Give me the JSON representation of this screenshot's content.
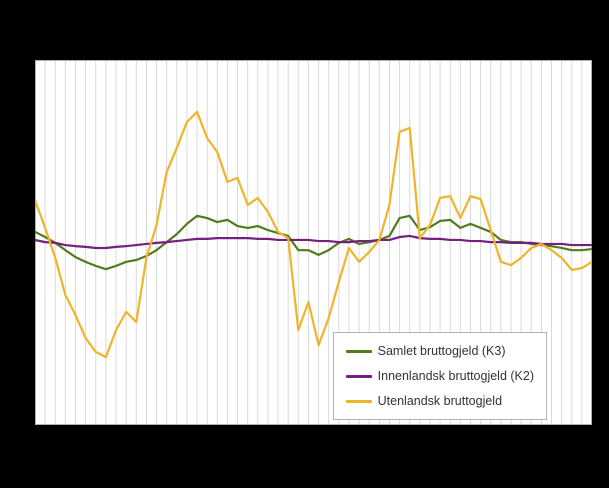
{
  "figure": {
    "background_color": "#000000",
    "plot_background_color": "#ffffff"
  },
  "chart_data": {
    "type": "line",
    "title": "",
    "xlabel": "",
    "ylabel": "",
    "x_axis_labels_visible": false,
    "y_axis_labels_visible": false,
    "grid": "vertical",
    "gridline_color": "#d9d9d9",
    "border_color": "#b0b0b0",
    "legend_position": "bottom-right-inside",
    "ylim": [
      0,
      100
    ],
    "units": "normalized-plot-height-percent (axis labels not visible in image)",
    "x": [
      0,
      1,
      2,
      3,
      4,
      5,
      6,
      7,
      8,
      9,
      10,
      11,
      12,
      13,
      14,
      15,
      16,
      17,
      18,
      19,
      20,
      21,
      22,
      23,
      24,
      25,
      26,
      27,
      28,
      29,
      30,
      31,
      32,
      33,
      34,
      35,
      36,
      37,
      38,
      39,
      40,
      41,
      42,
      43,
      44,
      45,
      46,
      47,
      48,
      49,
      50,
      51,
      52,
      53,
      54,
      55
    ],
    "series": [
      {
        "name": "Samlet bruttogjeld (K3)",
        "color": "#4f7d1e",
        "values": [
          52.9,
          51.5,
          49.9,
          47.9,
          46.0,
          44.7,
          43.6,
          42.7,
          43.6,
          44.7,
          45.2,
          46.3,
          47.9,
          50.1,
          52.3,
          55.1,
          57.3,
          56.7,
          55.6,
          56.2,
          54.5,
          54.0,
          54.5,
          53.4,
          52.6,
          51.8,
          47.9,
          47.9,
          46.6,
          47.9,
          49.9,
          51.0,
          49.6,
          50.1,
          50.7,
          51.8,
          56.7,
          57.3,
          53.4,
          54.2,
          55.9,
          56.2,
          54.0,
          55.1,
          54.0,
          52.9,
          50.7,
          50.1,
          50.1,
          49.6,
          49.3,
          49.0,
          48.5,
          47.9,
          47.9,
          48.2
        ]
      },
      {
        "name": "Innenlandsk bruttogjeld (K2)",
        "color": "#75207f",
        "values": [
          50.7,
          50.1,
          49.9,
          49.3,
          49.0,
          48.8,
          48.5,
          48.5,
          48.8,
          49.0,
          49.3,
          49.6,
          49.9,
          50.1,
          50.4,
          50.7,
          51.0,
          51.0,
          51.2,
          51.2,
          51.2,
          51.2,
          51.0,
          51.0,
          50.7,
          50.7,
          50.7,
          50.7,
          50.4,
          50.4,
          50.1,
          50.1,
          50.4,
          50.4,
          50.7,
          50.7,
          51.5,
          51.8,
          51.2,
          51.0,
          51.0,
          50.7,
          50.7,
          50.4,
          50.4,
          50.1,
          50.1,
          49.9,
          49.9,
          49.9,
          49.6,
          49.6,
          49.6,
          49.3,
          49.3,
          49.3
        ]
      },
      {
        "name": "Utenlandsk bruttogjeld",
        "color": "#f0b428",
        "values": [
          61.6,
          54.0,
          45.8,
          35.6,
          30.1,
          23.8,
          20.0,
          18.6,
          26.0,
          31.0,
          28.2,
          45.8,
          54.8,
          69.3,
          75.9,
          83.0,
          85.8,
          78.6,
          74.8,
          66.6,
          67.7,
          60.3,
          62.2,
          58.4,
          52.9,
          51.2,
          26.0,
          33.7,
          21.9,
          29.3,
          39.2,
          48.5,
          44.7,
          47.4,
          50.7,
          60.3,
          80.3,
          81.4,
          51.2,
          54.8,
          62.2,
          62.7,
          56.7,
          62.7,
          61.9,
          53.4,
          44.7,
          43.8,
          45.8,
          48.5,
          49.6,
          47.9,
          45.8,
          42.5,
          43.0,
          44.7
        ]
      }
    ]
  }
}
